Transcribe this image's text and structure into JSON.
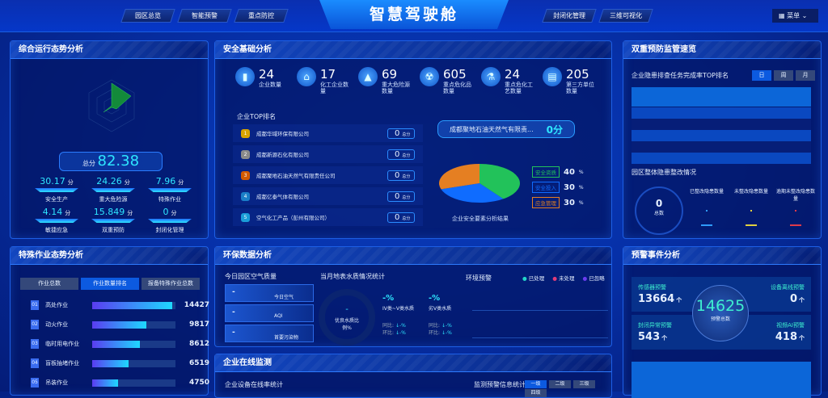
{
  "header": {
    "title": "智慧驾驶舱",
    "nav_left": [
      "园区总览",
      "智能预警",
      "重点防控"
    ],
    "nav_right": [
      "封闭化管理",
      "三维可视化"
    ],
    "menu_label": "菜单"
  },
  "overall": {
    "title": "综合运行态势分析",
    "total_label": "总分",
    "total": "82.38",
    "unit": "分",
    "items": [
      {
        "label": "安全生产",
        "value": "30.17"
      },
      {
        "label": "重大危险源",
        "value": "24.26"
      },
      {
        "label": "特殊作业",
        "value": "7.96"
      },
      {
        "label": "敏捷应急",
        "value": "4.14"
      },
      {
        "label": "双重预防",
        "value": "15.849"
      },
      {
        "label": "封闭化管理",
        "value": "0"
      }
    ]
  },
  "safety": {
    "title": "安全基础分析",
    "stats": [
      {
        "icon": "building-icon",
        "value": "24",
        "label": "企业数量"
      },
      {
        "icon": "factory-icon",
        "value": "17",
        "label": "化工企业数量"
      },
      {
        "icon": "warning-icon",
        "value": "69",
        "label": "重大危险源数量"
      },
      {
        "icon": "radiation-icon",
        "value": "605",
        "label": "重点危化品数量"
      },
      {
        "icon": "flask-icon",
        "value": "24",
        "label": "重点危化工艺数量"
      },
      {
        "icon": "third-party-icon",
        "value": "205",
        "label": "第三方单位数量"
      }
    ],
    "top_title": "企业TOP排名",
    "score_unit": "总分",
    "ranking": [
      {
        "rank": "1",
        "name": "成都华域环保有限公司",
        "score": "0",
        "color": "#d9a400"
      },
      {
        "rank": "2",
        "name": "成都新源石化有限公司",
        "score": "0",
        "color": "#8a8a8a"
      },
      {
        "rank": "3",
        "name": "成都聚地石油天然气有限责任公司",
        "score": "0",
        "color": "#d45a00"
      },
      {
        "rank": "4",
        "name": "成都亿泰气体有限公司",
        "score": "0",
        "color": "#1a7ec8"
      },
      {
        "rank": "5",
        "name": "空气化工产品（彭州有限公司）",
        "score": "0",
        "color": "#1a9ed8"
      }
    ],
    "highlight_name": "成都聚地石油天然气有限责...",
    "highlight_score": "0分",
    "pie_caption": "企业安全要素分析结果",
    "pie": [
      {
        "label": "安全资质",
        "value": 40,
        "color": "#22c25a"
      },
      {
        "label": "安全投入",
        "value": 30,
        "color": "#0f6cff"
      },
      {
        "label": "应急管理",
        "value": 30,
        "color": "#e57f22"
      }
    ]
  },
  "dual": {
    "title": "双重预防监管速览",
    "subtitle": "企业隐患排查任务完成率TOP排名",
    "tabs": [
      "日",
      "周",
      "月"
    ],
    "active_tab": 0,
    "rect_title": "园区整体隐患整改情况",
    "total_value": "0",
    "total_label": "总数",
    "cols": [
      {
        "label": "已整改隐患数量",
        "color": "#2e9bff"
      },
      {
        "label": "未整改隐患数量",
        "color": "#e0d040"
      },
      {
        "label": "逾期未整改隐患数量",
        "color": "#e03a4a"
      }
    ]
  },
  "special": {
    "title": "特殊作业态势分析",
    "tabs": [
      "作业总数",
      "作业数量排名",
      "报备特殊作业总数"
    ],
    "active_tab": 1,
    "max": 15000,
    "items": [
      {
        "no": "01",
        "label": "高处作业",
        "value": 14427
      },
      {
        "no": "02",
        "label": "动火作业",
        "value": 9817
      },
      {
        "no": "03",
        "label": "临时用电作业",
        "value": 8612
      },
      {
        "no": "04",
        "label": "盲板抽堵作业",
        "value": 6519
      },
      {
        "no": "05",
        "label": "吊装作业",
        "value": 4750
      }
    ]
  },
  "env": {
    "title": "环保数据分析",
    "air_title": "今日园区空气质量",
    "air": [
      {
        "value": "-",
        "label": "今日空气"
      },
      {
        "value": "-",
        "label": "AQI"
      },
      {
        "value": "-",
        "label": "首要污染物"
      }
    ],
    "water_title": "当月地表水质情况统计",
    "gauge_value": "-",
    "gauge_label": "优良水质比例%",
    "water": [
      {
        "value": "-%",
        "label": "IV类~V类水质",
        "yoy": "同比:",
        "yoy_v": "↓-%",
        "mom": "环比:",
        "mom_v": "↓-%"
      },
      {
        "value": "-%",
        "label": "劣V类水质",
        "yoy": "同比:",
        "yoy_v": "↓-%",
        "mom": "环比:",
        "mom_v": "↓-%"
      }
    ],
    "alert_title": "环境预警",
    "legend": [
      {
        "label": "已处理",
        "color": "#22d6c8"
      },
      {
        "label": "未处理",
        "color": "#e23c78"
      },
      {
        "label": "已忽略",
        "color": "#6a3cf0"
      }
    ]
  },
  "warning": {
    "title": "预警事件分析",
    "total": "14625",
    "total_label": "预警总数",
    "unit": "个",
    "items": [
      {
        "label": "传感器预警",
        "value": "13664"
      },
      {
        "label": "设备离线预警",
        "value": "0"
      },
      {
        "label": "封闭异常预警",
        "value": "543"
      },
      {
        "label": "视频AI预警",
        "value": "418"
      }
    ]
  },
  "online": {
    "title": "企业在线监测",
    "left_label": "企业设备在线率统计",
    "right_label": "监测预警信息统计",
    "levels": [
      "一级",
      "二级",
      "三级",
      "四级"
    ],
    "active_level": 0
  }
}
